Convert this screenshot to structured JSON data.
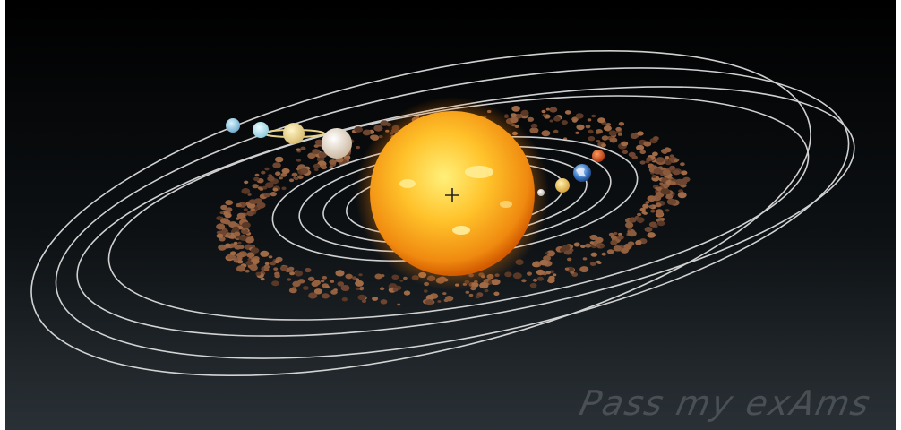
{
  "watermark": {
    "text": "Pass my exAms"
  },
  "colors": {
    "background_top": "#000000",
    "background_bottom": "#2a3136",
    "orbit": "#e6e6e6",
    "sun_core": "#ffd24a",
    "sun_edge": "#f07a0a",
    "asteroid": "#8a5a3c"
  },
  "objects": [
    {
      "name": "sun",
      "icon": "sun-icon"
    },
    {
      "name": "mercury",
      "icon": "planet-icon"
    },
    {
      "name": "venus",
      "icon": "planet-icon"
    },
    {
      "name": "earth",
      "icon": "planet-icon"
    },
    {
      "name": "mars",
      "icon": "planet-icon"
    },
    {
      "name": "asteroid-belt",
      "icon": "asteroid-belt-icon"
    },
    {
      "name": "jupiter",
      "icon": "planet-icon"
    },
    {
      "name": "saturn",
      "icon": "planet-icon"
    },
    {
      "name": "uranus",
      "icon": "planet-icon"
    },
    {
      "name": "neptune",
      "icon": "planet-icon"
    }
  ]
}
